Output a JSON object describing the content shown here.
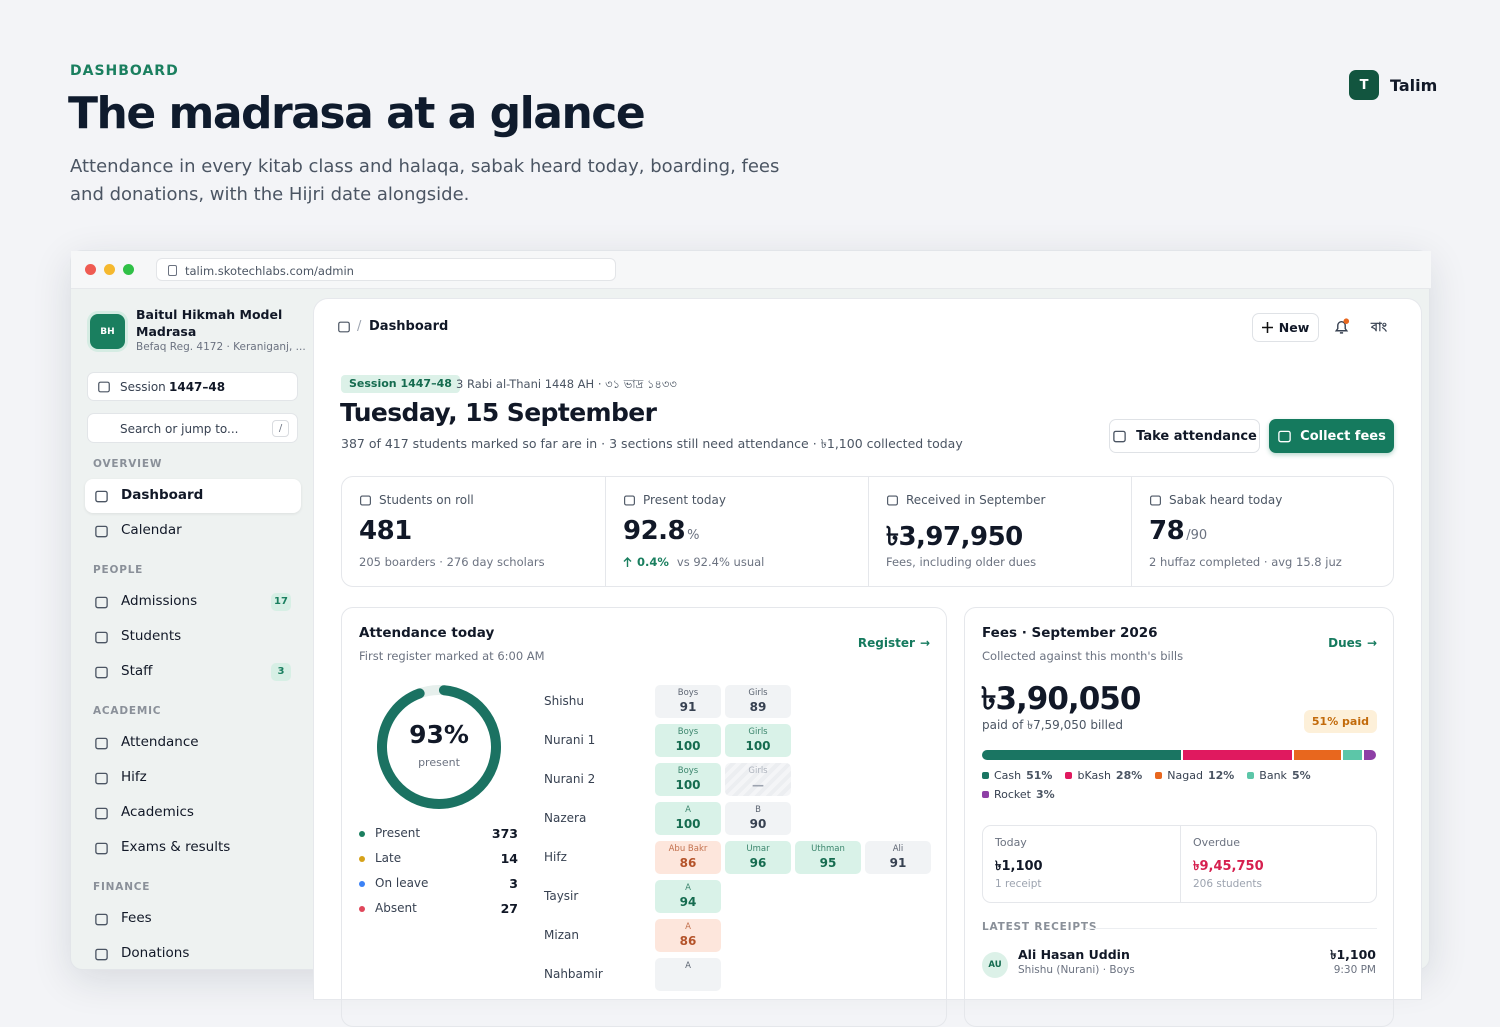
{
  "header": {
    "eyebrow": "DASHBOARD",
    "title": "The madrasa at a glance",
    "subtitle": "Attendance in every kitab class and halaqa, sabak heard today, boarding, fees and donations, with the Hijri date alongside.",
    "brand_initial": "T",
    "brand": "Talim"
  },
  "browser": {
    "url": "talim.skotechlabs.com/admin"
  },
  "sidebar": {
    "logo": "BH",
    "name": "Baitul Hikmah Model Madrasa",
    "reg": "Befaq Reg. 4172 · Keraniganj, ...",
    "session_label": "Session",
    "session_value": "1447–48",
    "search": "Search or jump to...",
    "search_key": "/",
    "groups": [
      {
        "title": "OVERVIEW",
        "items": [
          {
            "label": "Dashboard",
            "active": true
          },
          {
            "label": "Calendar"
          }
        ]
      },
      {
        "title": "PEOPLE",
        "items": [
          {
            "label": "Admissions",
            "badge": 17
          },
          {
            "label": "Students"
          },
          {
            "label": "Staff",
            "badge": 3
          }
        ]
      },
      {
        "title": "ACADEMIC",
        "items": [
          {
            "label": "Attendance"
          },
          {
            "label": "Hifz"
          },
          {
            "label": "Academics"
          },
          {
            "label": "Exams & results"
          }
        ]
      },
      {
        "title": "FINANCE",
        "items": [
          {
            "label": "Fees"
          },
          {
            "label": "Donations"
          }
        ]
      }
    ]
  },
  "topbar": {
    "breadcrumb": "Dashboard",
    "new": "New",
    "lang": "বাং"
  },
  "hero": {
    "session_tag": "Session 1447–48",
    "hijri": "3 Rabi al-Thani 1448 AH · ৩১ ভাদ্র ১৪৩৩",
    "date": "Tuesday, 15 September",
    "summary": "387 of 417 students marked so far are in · 3 sections still need attendance · ৳1,100 collected today",
    "take_attendance": "Take attendance",
    "collect_fees": "Collect fees"
  },
  "stats": [
    {
      "label": "Students on roll",
      "value": "481",
      "note": "205 boarders · 276 day scholars"
    },
    {
      "label": "Present today",
      "value": "92.8",
      "unit": "%",
      "delta": "0.4%",
      "note": "vs 92.4% usual"
    },
    {
      "label": "Received in September",
      "value": "৳3,97,950",
      "note": "Fees, including older dues"
    },
    {
      "label": "Sabak heard today",
      "value": "78",
      "unit": "/90",
      "note": "2 huffaz completed · avg 15.8 juz"
    }
  ],
  "attendance": {
    "title": "Attendance today",
    "subtitle": "First register marked at 6:00 AM",
    "link": "Register",
    "donut": {
      "value": 93,
      "unit": "%",
      "label": "present"
    },
    "legend": [
      {
        "name": "Present",
        "value": 373,
        "color": "#1b7f5f"
      },
      {
        "name": "Late",
        "value": 14,
        "color": "#d6a21a"
      },
      {
        "name": "On leave",
        "value": 3,
        "color": "#3b82f6"
      },
      {
        "name": "Absent",
        "value": 27,
        "color": "#e0475b"
      }
    ],
    "classes": [
      {
        "name": "Shishu",
        "cells": [
          {
            "label": "Boys",
            "value": 91,
            "tone": "neutral"
          },
          {
            "label": "Girls",
            "value": 89,
            "tone": "neutral"
          }
        ]
      },
      {
        "name": "Nurani 1",
        "cells": [
          {
            "label": "Boys",
            "value": 100,
            "tone": "good"
          },
          {
            "label": "Girls",
            "value": 100,
            "tone": "good"
          }
        ]
      },
      {
        "name": "Nurani 2",
        "cells": [
          {
            "label": "Boys",
            "value": 100,
            "tone": "good"
          },
          {
            "label": "Girls",
            "value": "—",
            "tone": "empty"
          }
        ]
      },
      {
        "name": "Nazera",
        "cells": [
          {
            "label": "A",
            "value": 100,
            "tone": "good"
          },
          {
            "label": "B",
            "value": 90,
            "tone": "neutral"
          }
        ]
      },
      {
        "name": "Hifz",
        "cells": [
          {
            "label": "Abu Bakr",
            "value": 86,
            "tone": "low"
          },
          {
            "label": "Umar",
            "value": 96,
            "tone": "good"
          },
          {
            "label": "Uthman",
            "value": 95,
            "tone": "good"
          },
          {
            "label": "Ali",
            "value": 91,
            "tone": "neutral"
          }
        ]
      },
      {
        "name": "Taysir",
        "cells": [
          {
            "label": "A",
            "value": 94,
            "tone": "good"
          }
        ]
      },
      {
        "name": "Mizan",
        "cells": [
          {
            "label": "A",
            "value": 86,
            "tone": "low"
          }
        ]
      },
      {
        "name": "Nahbamir",
        "cells": [
          {
            "label": "A",
            "tone": "neutral"
          }
        ]
      }
    ]
  },
  "fees": {
    "title": "Fees · September 2026",
    "subtitle": "Collected against this month's bills",
    "link": "Dues",
    "amount": "৳3,90,050",
    "billed": "paid of ৳7,59,050 billed",
    "badge": "51% paid",
    "segments": [
      {
        "name": "Cash",
        "value": 51,
        "label": "51%",
        "color": "#1a7562"
      },
      {
        "name": "bKash",
        "value": 28,
        "label": "28%",
        "color": "#e0195f"
      },
      {
        "name": "Nagad",
        "value": 12,
        "label": "12%",
        "color": "#e8671e"
      },
      {
        "name": "Bank",
        "value": 5,
        "label": "5%",
        "color": "#5cc6a8"
      },
      {
        "name": "Rocket",
        "value": 3,
        "label": "3%",
        "color": "#8e3fa6"
      }
    ],
    "today": {
      "label": "Today",
      "value": "৳1,100",
      "note": "1 receipt"
    },
    "overdue": {
      "label": "Overdue",
      "value": "৳9,45,750",
      "note": "206 students"
    },
    "receipts_title": "LATEST RECEIPTS",
    "receipts": [
      {
        "initials": "AU",
        "name": "Ali Hasan Uddin",
        "detail": "Shishu (Nurani) · Boys",
        "amount": "৳1,100",
        "time": "9:30 PM"
      }
    ]
  }
}
